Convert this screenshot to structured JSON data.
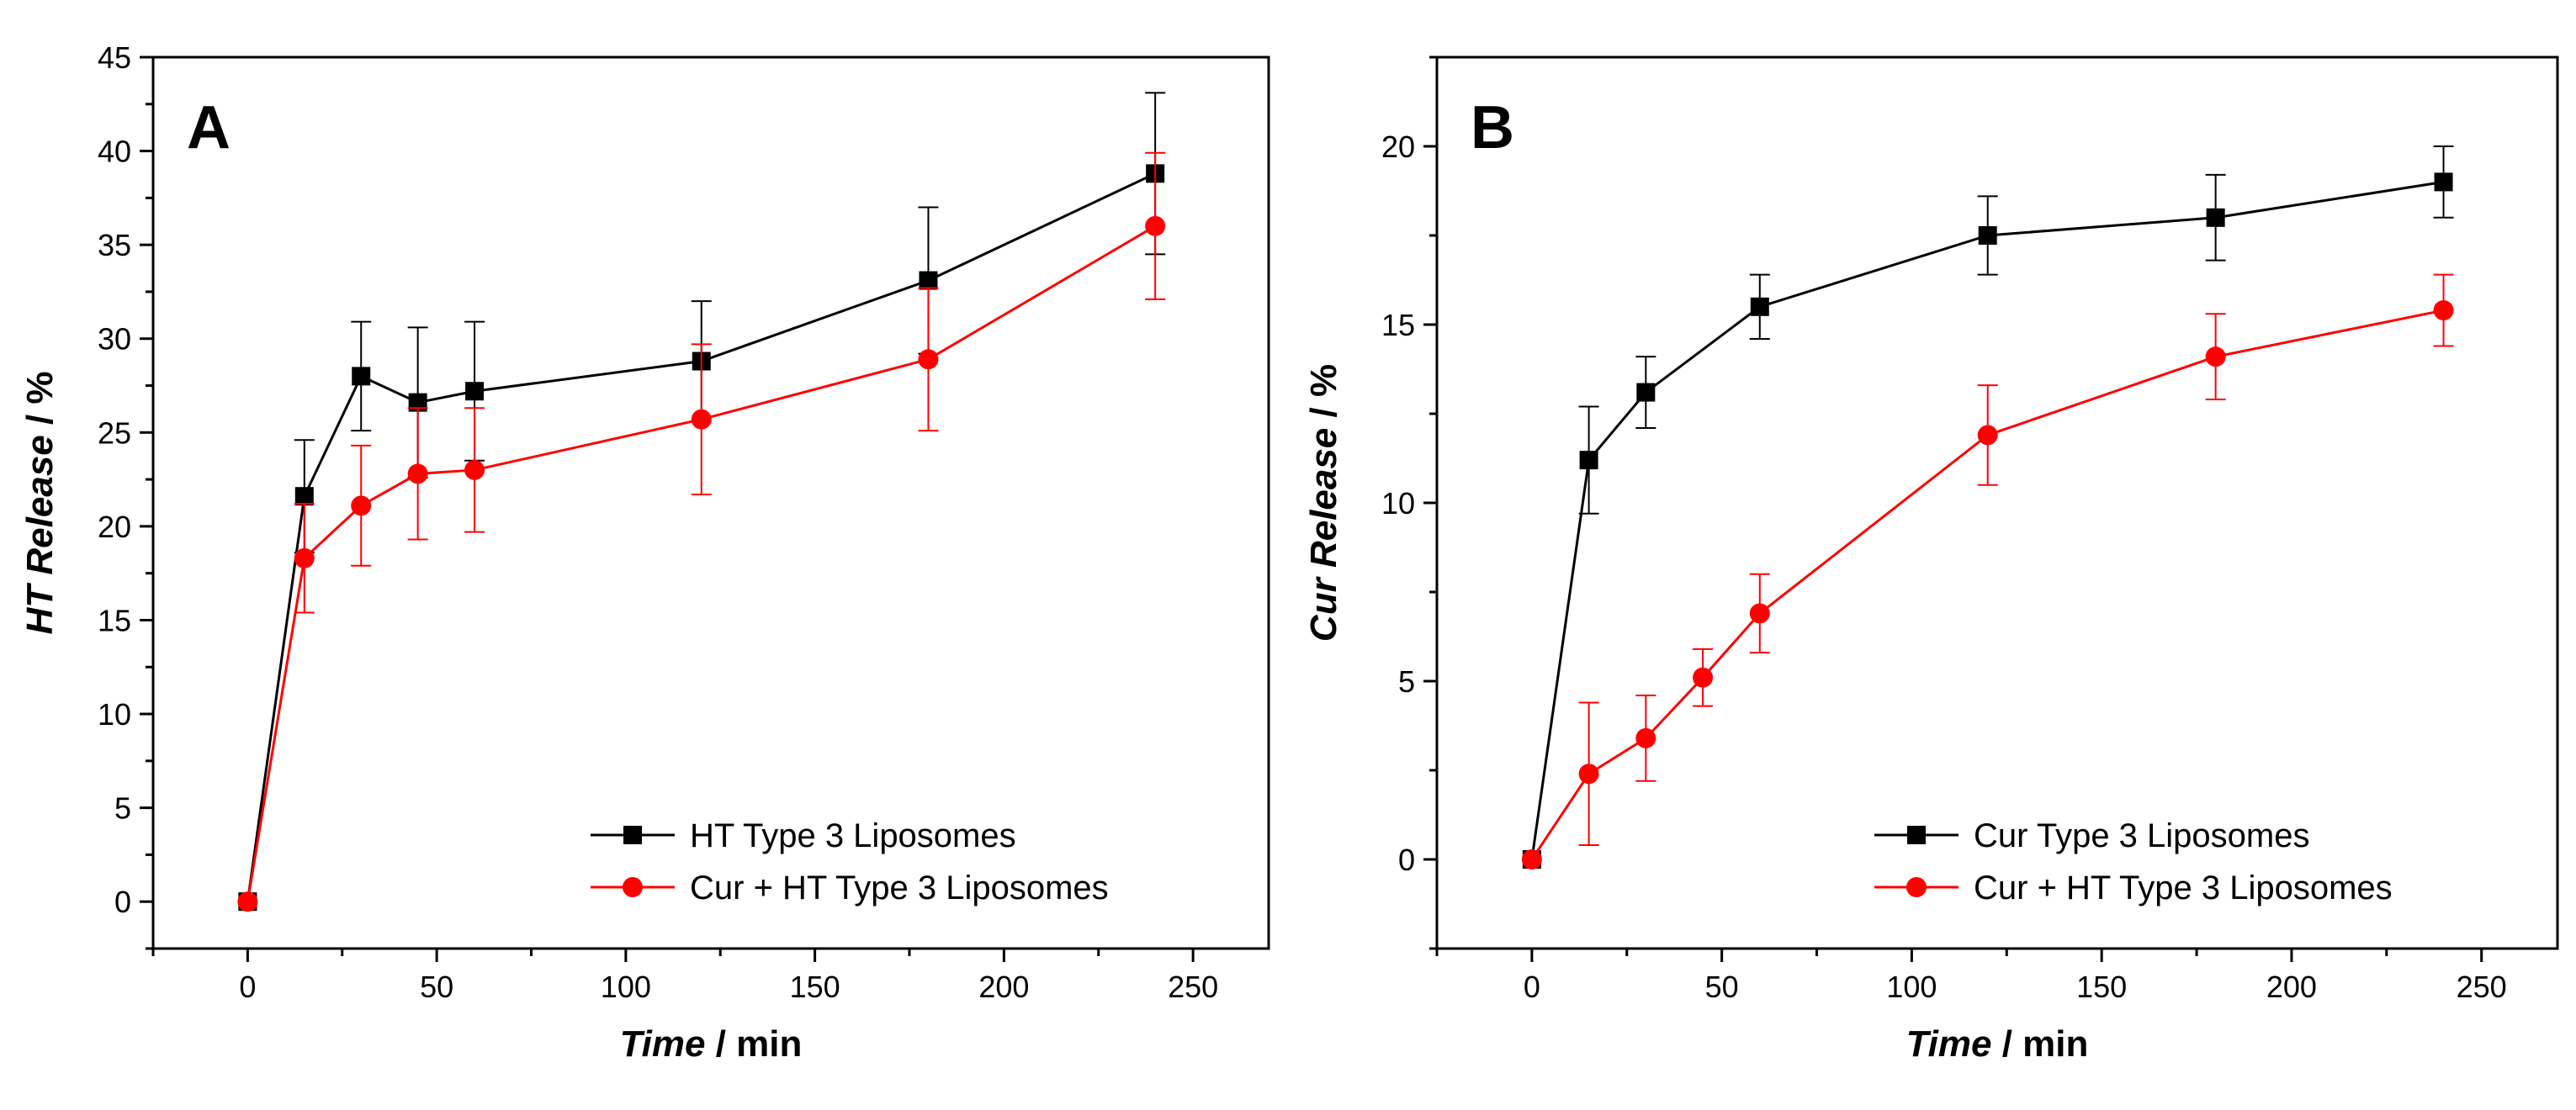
{
  "chart_data": [
    {
      "panel": "A",
      "type": "line",
      "xlabel_italic": "Time",
      "xlabel_rest": " / min",
      "ylabel_italic": "HT Release",
      "ylabel_rest": " / %",
      "xlim": [
        -25,
        270
      ],
      "ylim": [
        -2.5,
        45
      ],
      "xticks": [
        0,
        50,
        100,
        150,
        200,
        250
      ],
      "yticks": [
        0,
        5,
        10,
        15,
        20,
        25,
        30,
        35,
        40,
        45
      ],
      "legend_position": "bottom-right",
      "series": [
        {
          "name": "HT Type 3 Liposomes",
          "color": "#000000",
          "marker": "square",
          "x": [
            0,
            15,
            30,
            45,
            60,
            120,
            180,
            240
          ],
          "y": [
            0,
            21.6,
            28.0,
            26.6,
            27.2,
            28.8,
            33.1,
            38.8
          ],
          "err": [
            0,
            3.0,
            2.9,
            4.0,
            3.7,
            3.2,
            3.9,
            4.3
          ]
        },
        {
          "name": "Cur + HT Type 3 Liposomes",
          "color": "#ff0000",
          "marker": "circle",
          "x": [
            0,
            15,
            30,
            45,
            60,
            120,
            180,
            240
          ],
          "y": [
            0,
            18.3,
            21.1,
            22.8,
            23.0,
            25.7,
            28.9,
            36.0
          ],
          "err": [
            0,
            2.9,
            3.2,
            3.5,
            3.3,
            4.0,
            3.8,
            3.9
          ]
        }
      ]
    },
    {
      "panel": "B",
      "type": "line",
      "xlabel_italic": "Time",
      "xlabel_rest": " / min",
      "ylabel_italic": "Cur Release",
      "ylabel_rest": " / %",
      "xlim": [
        -25,
        270
      ],
      "ylim": [
        -2.5,
        22.5
      ],
      "xticks": [
        0,
        50,
        100,
        150,
        200,
        250
      ],
      "yticks": [
        0,
        5,
        10,
        15,
        20
      ],
      "legend_position": "bottom-right",
      "series": [
        {
          "name": "Cur Type 3 Liposomes",
          "color": "#000000",
          "marker": "square",
          "x": [
            0,
            15,
            30,
            60,
            120,
            180,
            240
          ],
          "y": [
            0,
            11.2,
            13.1,
            15.5,
            17.5,
            18.0,
            19.0
          ],
          "err": [
            0,
            1.5,
            1.0,
            0.9,
            1.1,
            1.2,
            1.0
          ]
        },
        {
          "name": "Cur + HT Type 3 Liposomes",
          "color": "#ff0000",
          "marker": "circle",
          "x": [
            0,
            15,
            30,
            45,
            60,
            120,
            180,
            240
          ],
          "y": [
            0,
            2.4,
            3.4,
            5.1,
            6.9,
            11.9,
            14.1,
            15.4
          ],
          "err": [
            0,
            2.0,
            1.2,
            0.8,
            1.1,
            1.4,
            1.2,
            1.0
          ]
        }
      ]
    }
  ]
}
